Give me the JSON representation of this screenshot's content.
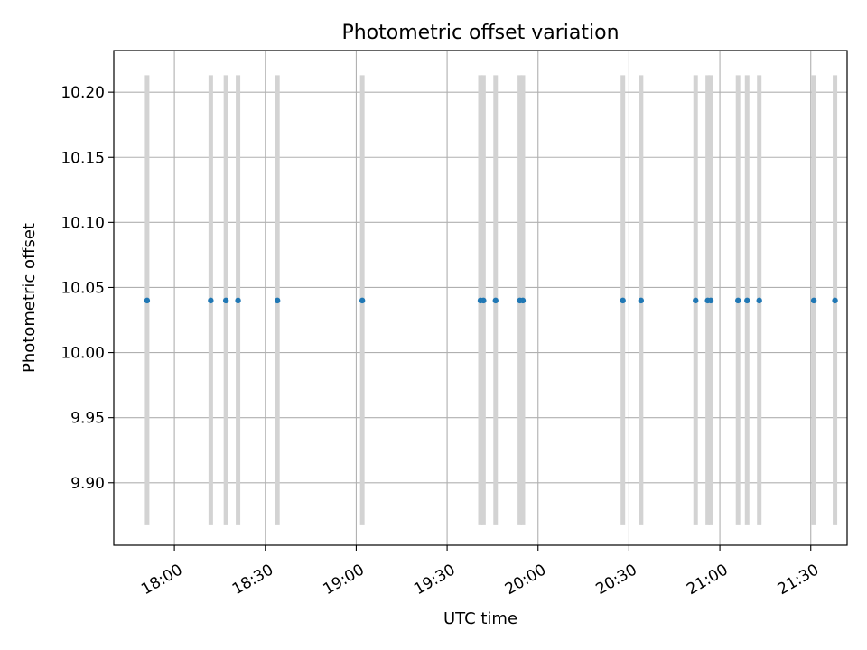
{
  "chart_data": {
    "type": "scatter",
    "title": "Photometric offset variation",
    "xlabel": "UTC time",
    "ylabel": "Photometric offset",
    "xlim": [
      "17:40",
      "21:42"
    ],
    "ylim": [
      9.852,
      10.232
    ],
    "x_ticks": [
      "18:00",
      "18:30",
      "19:00",
      "19:30",
      "20:00",
      "20:30",
      "21:00",
      "21:30"
    ],
    "y_ticks": [
      "9.90",
      "9.95",
      "10.00",
      "10.05",
      "10.10",
      "10.15",
      "10.20"
    ],
    "grid": true,
    "series": [
      {
        "x": [
          "17:51",
          "18:12",
          "18:17",
          "18:21",
          "18:34",
          "19:02",
          "19:41",
          "19:42",
          "19:46",
          "19:54",
          "19:55",
          "20:28",
          "20:34",
          "20:52",
          "20:56",
          "20:57",
          "21:06",
          "21:09",
          "21:13",
          "21:31",
          "21:38"
        ],
        "y": [
          10.04,
          10.04,
          10.04,
          10.04,
          10.04,
          10.04,
          10.04,
          10.04,
          10.04,
          10.04,
          10.04,
          10.04,
          10.04,
          10.04,
          10.04,
          10.04,
          10.04,
          10.04,
          10.04,
          10.04,
          10.04
        ],
        "error_low": 9.868,
        "error_high": 10.213
      }
    ],
    "colors": {
      "points": "#1f77b4",
      "error_bars": "#d3d3d3",
      "grid": "#b0b0b0",
      "axes": "#000000"
    }
  }
}
